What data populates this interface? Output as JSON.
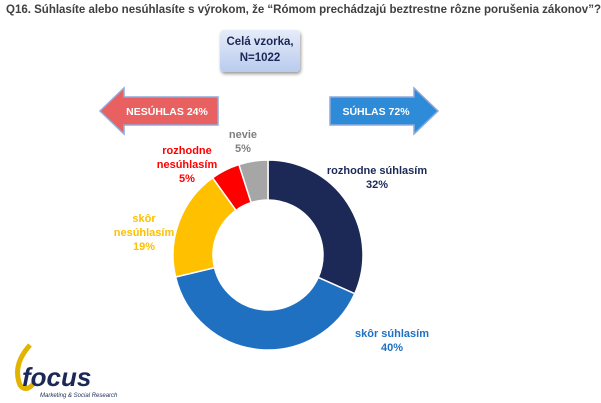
{
  "chart_data": {
    "type": "donut",
    "title": "Q16. Súhlasíte alebo nesúhlasíte s výrokom, že “Rómom prechádzajú beztrestne rôzne porušenia zákonov”?",
    "sample_note": [
      "Celá vzorka,",
      "N=1022"
    ],
    "arrows": [
      {
        "label": "NESÚHLAS 24%",
        "color": "#e8605f",
        "direction": "left"
      },
      {
        "label": "SÚHLAS 72%",
        "color": "#2e8bd8",
        "direction": "right"
      }
    ],
    "categories": [
      "rozhodne súhlasím",
      "skôr súhlasím",
      "skôr nesúhlasím",
      "rozhodne nesúhlasím",
      "nevie"
    ],
    "values": [
      32,
      40,
      19,
      5,
      5
    ],
    "value_labels": [
      "32%",
      "40%",
      "19%",
      "5%",
      "5%"
    ],
    "colors": [
      "#1c2957",
      "#1f70c1",
      "#ffc000",
      "#ff0000",
      "#a6a6a6"
    ],
    "label_colors": [
      "#1c2957",
      "#1f70c1",
      "#ffc000",
      "#ff0000",
      "#7f7f7f"
    ]
  },
  "logo": {
    "name": "focus",
    "tagline": "Marketing & Social Research"
  }
}
